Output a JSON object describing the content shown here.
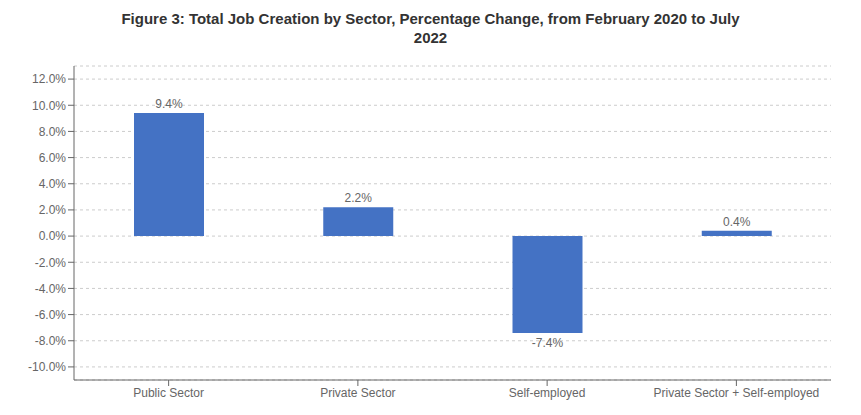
{
  "chart_data": {
    "type": "bar",
    "title": "Figure 3: Total Job Creation by Sector, Percentage Change, from February 2020 to July\n2022",
    "categories": [
      "Public Sector",
      "Private Sector",
      "Self-employed",
      "Private Sector + Self-employed"
    ],
    "values": [
      9.4,
      2.2,
      -7.4,
      0.4
    ],
    "value_labels": [
      "9.4%",
      "2.2%",
      "-7.4%",
      "0.4%"
    ],
    "data_labels": true,
    "color": "#4472C4",
    "ylim": [
      -11.0,
      13.0
    ],
    "yticks": [
      {
        "value": -10.0,
        "label": "-10.0%"
      },
      {
        "value": -8.0,
        "label": "-8.0%"
      },
      {
        "value": -6.0,
        "label": "-6.0%"
      },
      {
        "value": -4.0,
        "label": "-4.0%"
      },
      {
        "value": -2.0,
        "label": "-2.0%"
      },
      {
        "value": 0.0,
        "label": "0.0%"
      },
      {
        "value": 2.0,
        "label": "2.0%"
      },
      {
        "value": 4.0,
        "label": "4.0%"
      },
      {
        "value": 6.0,
        "label": "6.0%"
      },
      {
        "value": 8.0,
        "label": "8.0%"
      },
      {
        "value": 10.0,
        "label": "10.0%"
      },
      {
        "value": 12.0,
        "label": "12.0%"
      }
    ],
    "grid": true
  }
}
